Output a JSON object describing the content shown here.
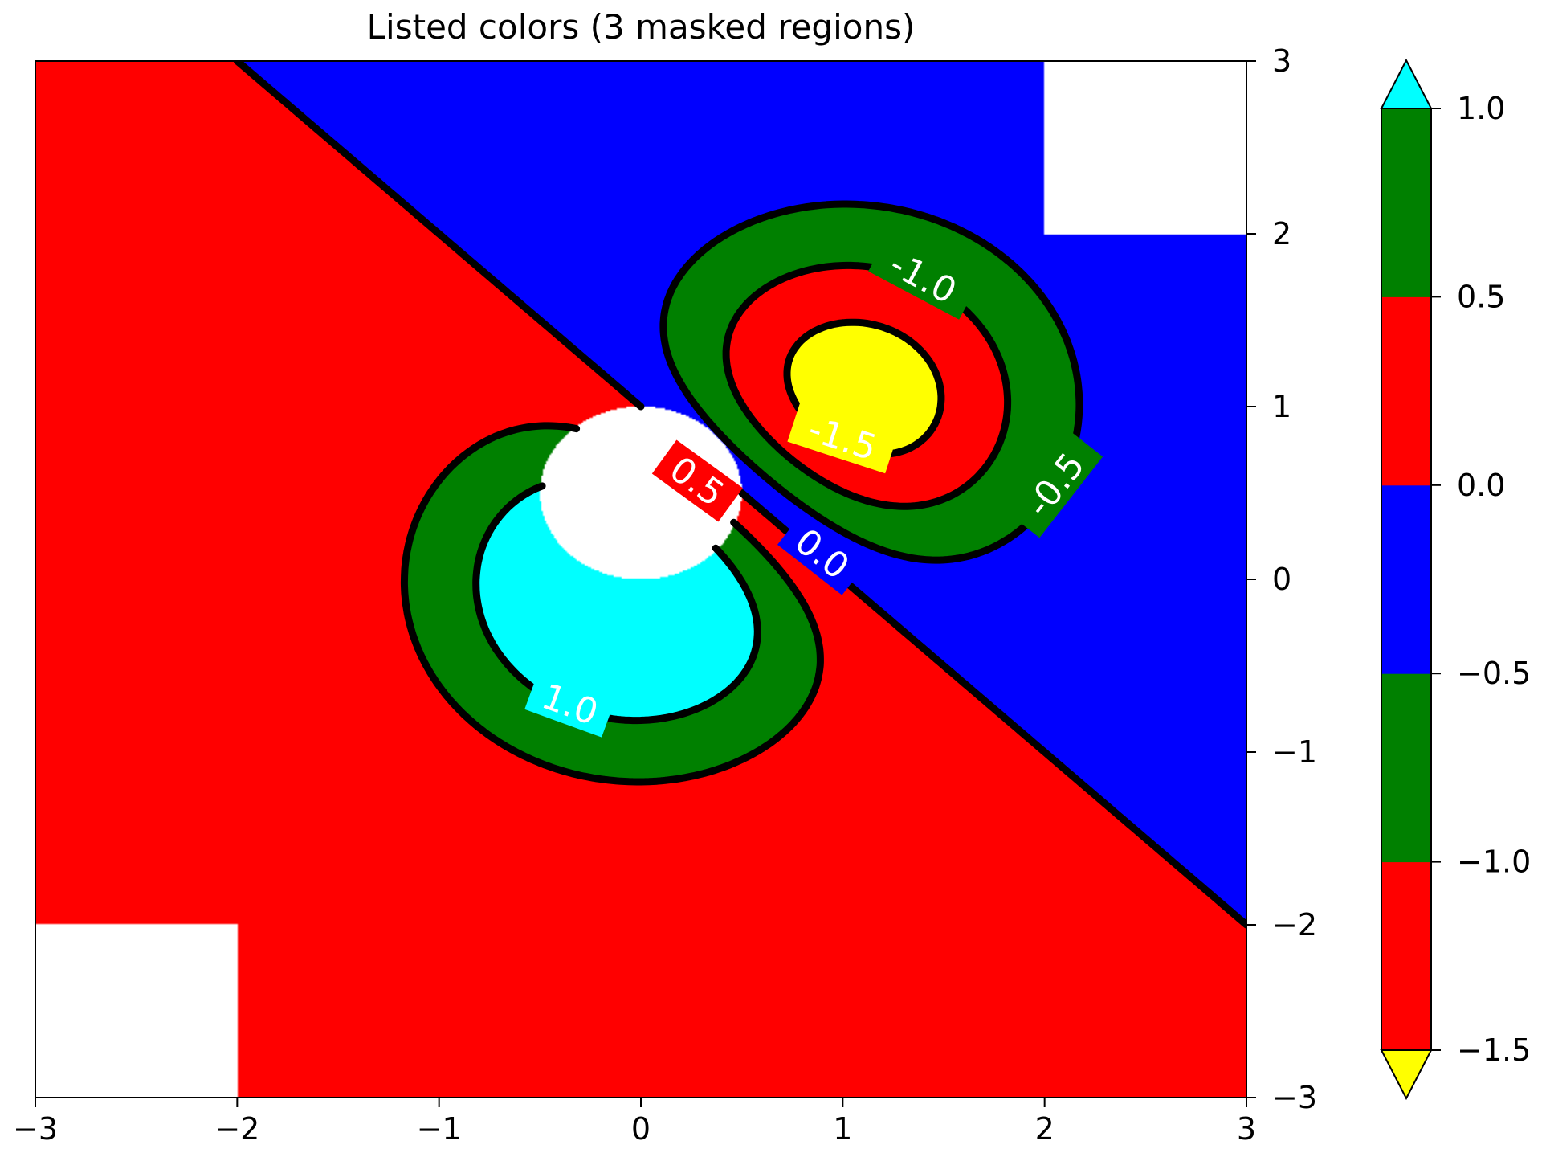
{
  "chart_data": {
    "type": "contour",
    "title": "Listed colors (3 masked regions)",
    "xlabel": "",
    "ylabel": "",
    "xlim": [
      -3,
      3
    ],
    "ylim": [
      -3,
      3
    ],
    "x_ticks": [
      "−3",
      "−2",
      "−1",
      "0",
      "1",
      "2",
      "3"
    ],
    "x_tick_values": [
      -3,
      -2,
      -1,
      0,
      1,
      2,
      3
    ],
    "y_ticks": [
      "−3",
      "−2",
      "−1",
      "0",
      "1",
      "2",
      "3"
    ],
    "y_tick_values": [
      -3,
      -2,
      -1,
      0,
      1,
      2,
      3
    ],
    "y_axis_side": "right",
    "grid": false,
    "levels": [
      -1.5,
      -1.0,
      -0.5,
      0.0,
      0.5,
      1.0
    ],
    "fill_colors": [
      "#ff0000",
      "#008000",
      "#0000ff",
      "#ff0000",
      "#008000"
    ],
    "under_color": "#ffff00",
    "over_color": "#00ffff",
    "contour_line_color": "#000000",
    "contour_labels": [
      {
        "text": "1.0",
        "x": -0.35,
        "y": -0.72,
        "angle": 20
      },
      {
        "text": "0.5",
        "x": 0.28,
        "y": 0.57,
        "angle": 36
      },
      {
        "text": "0.0",
        "x": 0.9,
        "y": 0.15,
        "angle": 38
      },
      {
        "text": "-0.5",
        "x": 2.05,
        "y": 0.55,
        "angle": -52
      },
      {
        "text": "-1.0",
        "x": 1.4,
        "y": 1.75,
        "angle": 28
      },
      {
        "text": "-1.5",
        "x": 1.0,
        "y": 0.82,
        "angle": 18
      }
    ],
    "masked_regions": [
      {
        "shape": "rectangle",
        "x": [
          2,
          3
        ],
        "y": [
          2,
          3
        ]
      },
      {
        "shape": "rectangle",
        "x": [
          -3,
          -2
        ],
        "y": [
          -3,
          -2
        ]
      },
      {
        "shape": "circle",
        "cx": 0,
        "cy": 0.5,
        "r": 0.5
      }
    ],
    "colorbar": {
      "ticks": [
        "−1.5",
        "−1.0",
        "−0.5",
        "0.0",
        "0.5",
        "1.0"
      ],
      "tick_values": [
        -1.5,
        -1.0,
        -0.5,
        0.0,
        0.5,
        1.0
      ],
      "extend": "both"
    }
  }
}
